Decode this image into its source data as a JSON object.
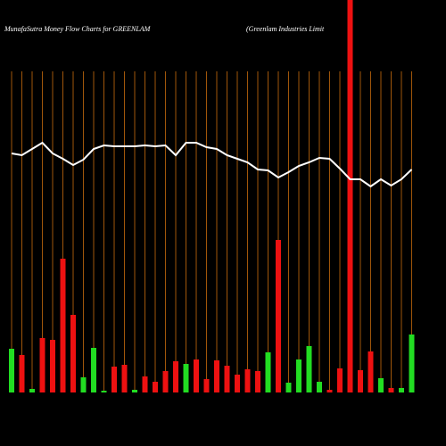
{
  "chart_data": {
    "type": "bar",
    "title": "MunafaSutra  Money Flow  Charts for GREENLAM",
    "subtitle": "(Greenlam Industries Limit",
    "categories": [
      null,
      null,
      null,
      null,
      null,
      null,
      null,
      null,
      null,
      null,
      null,
      null,
      null,
      null,
      null,
      null,
      null,
      null,
      null,
      null,
      null,
      null,
      null,
      null,
      null,
      null,
      null,
      null,
      null,
      null,
      null,
      null,
      null,
      null,
      null,
      null,
      null,
      null,
      null,
      null
    ],
    "values": [
      49,
      42,
      4,
      61,
      59,
      150,
      87,
      17,
      50,
      2,
      29,
      31,
      3,
      18,
      12,
      24,
      35,
      32,
      37,
      15,
      36,
      30,
      20,
      26,
      24,
      45,
      171,
      11,
      37,
      52,
      12,
      3,
      27,
      440,
      25,
      46,
      16,
      5,
      5,
      65
    ],
    "colors": [
      "#22dd22",
      "#ee1111",
      "#22dd22",
      "#ee1111",
      "#ee1111",
      "#ee1111",
      "#ee1111",
      "#22dd22",
      "#22dd22",
      "#22dd22",
      "#ee1111",
      "#ee1111",
      "#22dd22",
      "#ee1111",
      "#ee1111",
      "#ee1111",
      "#ee1111",
      "#22dd22",
      "#ee1111",
      "#ee1111",
      "#ee1111",
      "#ee1111",
      "#ee1111",
      "#ee1111",
      "#ee1111",
      "#22dd22",
      "#ee1111",
      "#22dd22",
      "#22dd22",
      "#22dd22",
      "#22dd22",
      "#ee1111",
      "#ee1111",
      "#ee1111",
      "#ee1111",
      "#ee1111",
      "#22dd22",
      "#ee1111",
      "#22dd22",
      "#22dd22"
    ],
    "line": {
      "color": "#ffffff",
      "values": [
        268,
        266,
        273,
        280,
        268,
        262,
        255,
        261,
        273,
        277,
        276,
        276,
        276,
        277,
        276,
        277,
        266,
        280,
        280,
        275,
        273,
        266,
        262,
        258,
        250,
        249,
        241,
        247,
        254,
        258,
        263,
        262,
        251,
        239,
        239,
        231,
        239,
        232,
        239,
        250
      ]
    },
    "grid_color": "#a0560a",
    "ylim": [
      0,
      440
    ]
  }
}
